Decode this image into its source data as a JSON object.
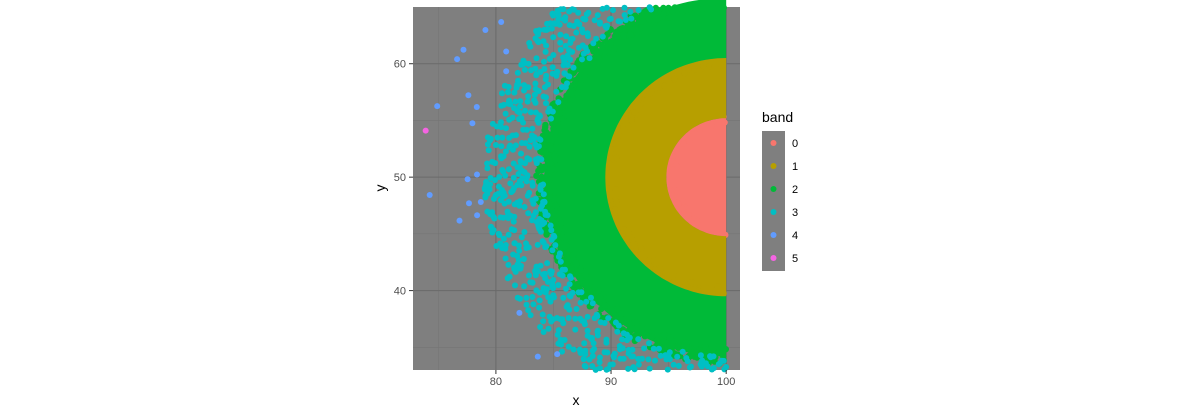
{
  "chart_data": {
    "type": "scatter",
    "title": "",
    "xlabel": "x",
    "ylabel": "y",
    "xlim": [
      72.8,
      101.2
    ],
    "ylim": [
      33,
      65
    ],
    "x_ticks": [
      80,
      90,
      100
    ],
    "y_ticks": [
      40,
      50,
      60
    ],
    "grid": true,
    "panel_color": "#7f7f7f",
    "legend": {
      "title": "band",
      "position": "right"
    },
    "series": [
      {
        "name": "0",
        "color": "#F8766D",
        "center": [
          100,
          50
        ],
        "r_min": 0,
        "r_max": 5.2
      },
      {
        "name": "1",
        "color": "#B79F00",
        "center": [
          100,
          50
        ],
        "r_min": 5.2,
        "r_max": 10.5
      },
      {
        "name": "2",
        "color": "#00BA38",
        "center": [
          100,
          50
        ],
        "r_min": 10.5,
        "r_max": 15.8
      },
      {
        "name": "3",
        "color": "#00BFC4",
        "center": [
          100,
          50
        ],
        "r_min": 15.8,
        "r_max": 21.0
      },
      {
        "name": "4",
        "color": "#619CFF",
        "center": [
          100,
          50
        ],
        "r_min": 21.0,
        "r_max": 26.0
      },
      {
        "name": "5",
        "color": "#F564E3",
        "points": [
          [
            73.9,
            54.1
          ]
        ]
      }
    ],
    "x_max_clip": 100.2
  }
}
